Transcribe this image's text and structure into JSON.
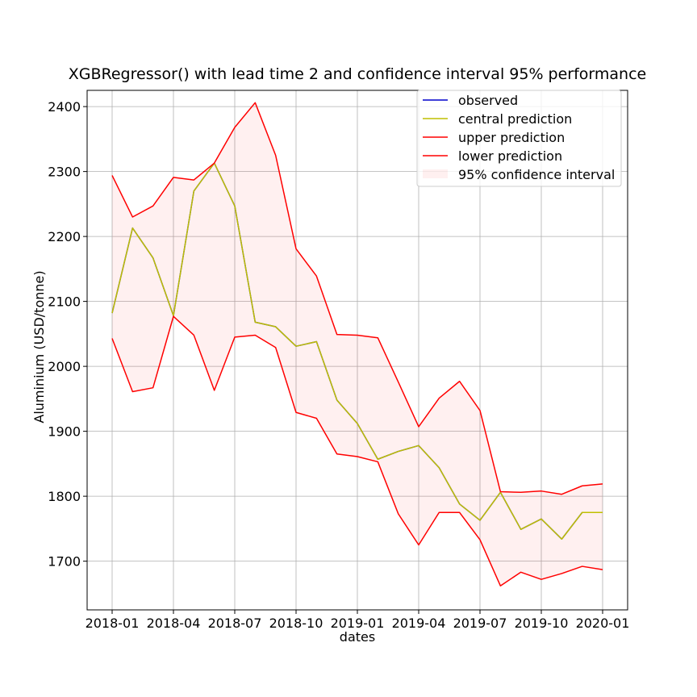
{
  "chart_data": {
    "type": "line",
    "title": "XGBRegressor() with lead time 2 and confidence interval 95% performance",
    "xlabel": "dates",
    "ylabel": "Aluminium (USD/tonne)",
    "x_dates": [
      "2018-01",
      "2018-02",
      "2018-03",
      "2018-04",
      "2018-05",
      "2018-06",
      "2018-07",
      "2018-08",
      "2018-09",
      "2018-10",
      "2018-11",
      "2018-12",
      "2019-01",
      "2019-02",
      "2019-03",
      "2019-04",
      "2019-05",
      "2019-06",
      "2019-07",
      "2019-08",
      "2019-09",
      "2019-10",
      "2019-11",
      "2019-12",
      "2020-01"
    ],
    "xticks": [
      "2018-01",
      "2018-04",
      "2018-07",
      "2018-10",
      "2019-01",
      "2019-04",
      "2019-07",
      "2019-10",
      "2020-01"
    ],
    "yticks": [
      1700,
      1800,
      1900,
      2000,
      2100,
      2200,
      2300,
      2400
    ],
    "ylim": [
      1625,
      2425
    ],
    "grid": true,
    "legend_position": "top-right",
    "series": [
      {
        "name": "observed",
        "color": "#0000cc",
        "values": [
          2082,
          2213,
          2167,
          2078,
          2270,
          2313,
          2247,
          2068,
          2061,
          2031,
          2038,
          1948,
          1912,
          1857,
          1869,
          1878,
          1844,
          1788,
          1763,
          1806,
          1749,
          1765,
          1734,
          1775,
          1775
        ]
      },
      {
        "name": "central prediction",
        "color": "#bfbf00",
        "values": [
          2082,
          2213,
          2167,
          2078,
          2270,
          2313,
          2247,
          2068,
          2061,
          2031,
          2038,
          1948,
          1912,
          1857,
          1869,
          1878,
          1844,
          1788,
          1763,
          1806,
          1749,
          1765,
          1734,
          1775,
          1775
        ]
      },
      {
        "name": "upper prediction",
        "color": "#ff0000",
        "values": [
          2294,
          2230,
          2247,
          2291,
          2287,
          2313,
          2368,
          2406,
          2325,
          2181,
          2139,
          2049,
          2048,
          2044,
          1976,
          1907,
          1951,
          1977,
          1932,
          1807,
          1806,
          1808,
          1803,
          1816,
          1819
        ]
      },
      {
        "name": "lower prediction",
        "color": "#ff0000",
        "values": [
          2043,
          1961,
          1967,
          2077,
          2048,
          1963,
          2045,
          2048,
          2029,
          1929,
          1920,
          1865,
          1861,
          1853,
          1773,
          1725,
          1775,
          1775,
          1733,
          1662,
          1683,
          1672,
          1681,
          1692,
          1687
        ]
      }
    ],
    "band": {
      "name": "95% confidence interval",
      "color": "#ff0000",
      "opacity": 0.06
    }
  }
}
